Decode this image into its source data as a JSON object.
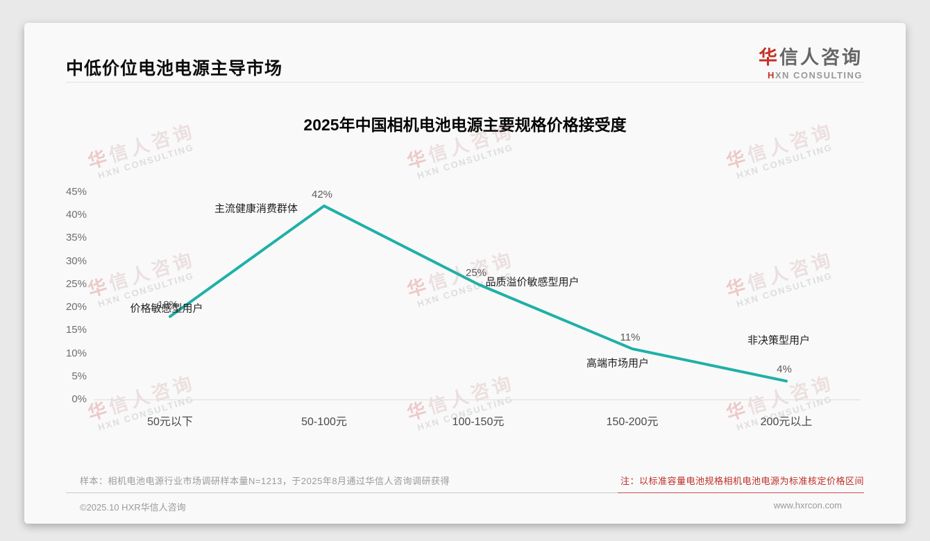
{
  "page": {
    "title": "中低价位电池电源主导市场",
    "logo": {
      "zh_first": "华",
      "zh_rest": "信人咨询",
      "en_first": "H",
      "en_rest": "XN CONSULTING"
    },
    "watermark": {
      "zh_first": "华",
      "zh_rest": "信人咨询",
      "en": "HXN CONSULTING"
    },
    "footer": {
      "sample_note": "样本：相机电池电源行业市场调研样本量N=1213，于2025年8月通过华信人咨询调研获得",
      "price_note": "注：以标准容量电池规格相机电池电源为标准核定价格区间",
      "copyright": "©2025.10 HXR华信人咨询",
      "website": "www.hxrcon.com"
    }
  },
  "colors": {
    "line": "#1FB0A8",
    "accent_red": "#BF2D23",
    "logo_red": "#C53027"
  },
  "chart_data": {
    "type": "line",
    "title": "2025年中国相机电池电源主要规格价格接受度",
    "categories": [
      "50元以下",
      "50-100元",
      "100-150元",
      "150-200元",
      "200元以上"
    ],
    "values": [
      18,
      42,
      25,
      11,
      4
    ],
    "value_labels": [
      "18%",
      "42%",
      "25%",
      "11%",
      "4%"
    ],
    "annotations": [
      "价格敏感型用户",
      "主流健康消费群体",
      "品质溢价敏感型用户",
      "高端市场用户",
      "非决策型用户"
    ],
    "yticks": [
      45,
      40,
      35,
      30,
      25,
      20,
      15,
      10,
      5,
      0
    ],
    "ytick_labels": [
      "45%",
      "40%",
      "35%",
      "30%",
      "25%",
      "20%",
      "15%",
      "10%",
      "5%",
      "0%"
    ],
    "ylim": [
      0,
      45
    ],
    "xlabel": "",
    "ylabel": "",
    "grid": false,
    "legend": null,
    "line_color": "#1FB0A8"
  }
}
